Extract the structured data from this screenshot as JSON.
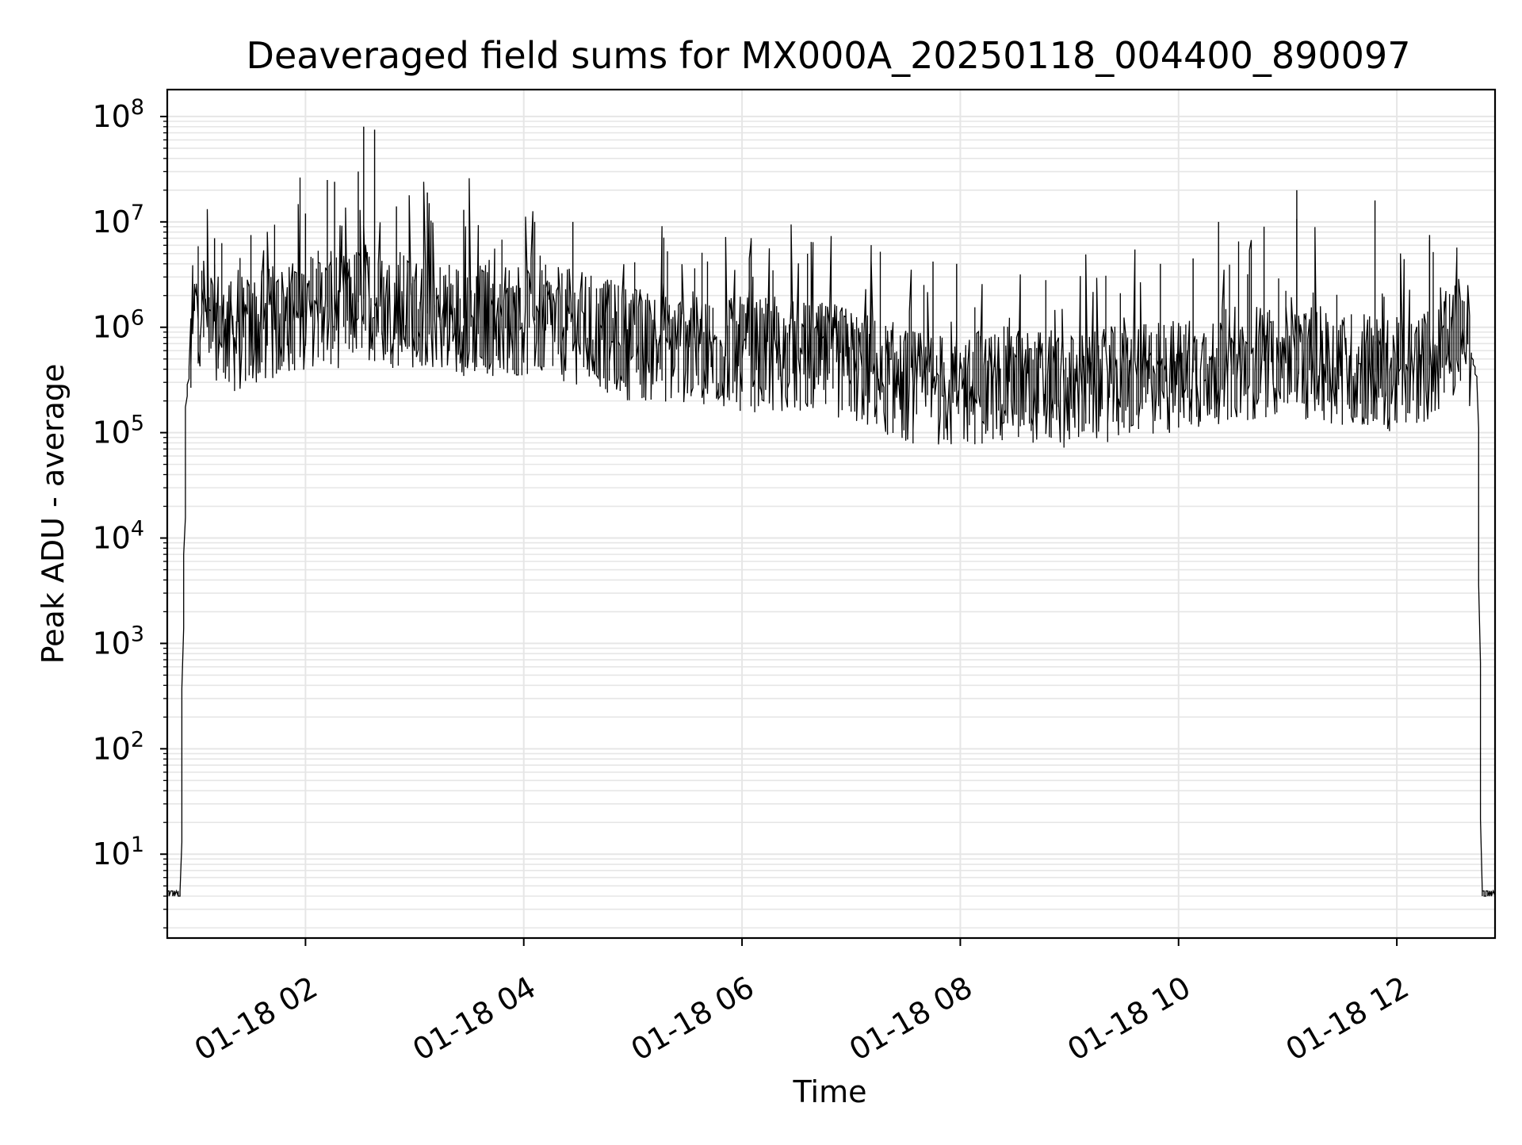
{
  "chart_data": {
    "type": "line",
    "title": "Deaveraged field sums for MX000A_20250118_004400_890097",
    "xlabel": "Time",
    "ylabel": "Peak ADU - average",
    "yscale": "log",
    "ylim": [
      1.6,
      180000000
    ],
    "xlim": [
      "2025-01-18 00:44",
      "2025-01-18 12:54"
    ],
    "x_ticks": [
      "01-18 02",
      "01-18 04",
      "01-18 06",
      "01-18 08",
      "01-18 10",
      "01-18 12"
    ],
    "y_ticks": [
      {
        "base": "10",
        "exp": "1"
      },
      {
        "base": "10",
        "exp": "2"
      },
      {
        "base": "10",
        "exp": "3"
      },
      {
        "base": "10",
        "exp": "4"
      },
      {
        "base": "10",
        "exp": "5"
      },
      {
        "base": "10",
        "exp": "6"
      },
      {
        "base": "10",
        "exp": "7"
      },
      {
        "base": "10",
        "exp": "8"
      }
    ],
    "grid": "both (major and minor)",
    "line_color": "#000000",
    "grid_color": "#e6e6e6",
    "series": [
      {
        "x": [
          "2025-01-18 00:44",
          "2025-01-18 00:52",
          "2025-01-18 00:53",
          "2025-01-18 00:55",
          "2025-01-18 01:00",
          "2025-01-18 01:02",
          "2025-01-18 01:20",
          "2025-01-18 01:50",
          "2025-01-18 02:10",
          "2025-01-18 02:20",
          "2025-01-18 02:33",
          "2025-01-18 02:40",
          "2025-01-18 03:00",
          "2025-01-18 03:30",
          "2025-01-18 04:00",
          "2025-01-18 04:30",
          "2025-01-18 05:00",
          "2025-01-18 05:30",
          "2025-01-18 06:00",
          "2025-01-18 06:30",
          "2025-01-18 07:00",
          "2025-01-18 07:30",
          "2025-01-18 08:00",
          "2025-01-18 08:30",
          "2025-01-18 09:00",
          "2025-01-18 09:30",
          "2025-01-18 10:00",
          "2025-01-18 10:30",
          "2025-01-18 11:00",
          "2025-01-18 11:30",
          "2025-01-18 12:00",
          "2025-01-18 12:20",
          "2025-01-18 12:38",
          "2025-01-18 12:45",
          "2025-01-18 12:47",
          "2025-01-18 12:54"
        ],
        "y": [
          4,
          4,
          1000,
          200000,
          1600000,
          1500000,
          800000,
          1200000,
          1600000,
          1400000,
          1900000,
          1500000,
          1400000,
          1200000,
          1200000,
          1000000,
          700000,
          650000,
          550000,
          520000,
          450000,
          280000,
          250000,
          300000,
          250000,
          300000,
          350000,
          450000,
          500000,
          420000,
          350000,
          450000,
          1000000,
          300000,
          4,
          4
        ]
      }
    ],
    "spikes": [
      {
        "x": "2025-01-18 02:32",
        "y": 80000000
      },
      {
        "x": "2025-01-18 02:38",
        "y": 75000000
      },
      {
        "x": "2025-01-18 02:12",
        "y": 25000000
      },
      {
        "x": "2025-01-18 02:16",
        "y": 24000000
      },
      {
        "x": "2025-01-18 02:29",
        "y": 30000000
      },
      {
        "x": "2025-01-18 02:50",
        "y": 14000000
      },
      {
        "x": "2025-01-18 03:07",
        "y": 19000000
      },
      {
        "x": "2025-01-18 03:27",
        "y": 13000000
      },
      {
        "x": "2025-01-18 02:00",
        "y": 12000000
      },
      {
        "x": "2025-01-18 04:06",
        "y": 10000000
      },
      {
        "x": "2025-01-18 04:27",
        "y": 10000000
      },
      {
        "x": "2025-01-18 06:05",
        "y": 7000000
      },
      {
        "x": "2025-01-18 07:45",
        "y": 4200000
      },
      {
        "x": "2025-01-18 07:58",
        "y": 4000000
      },
      {
        "x": "2025-01-18 09:50",
        "y": 4000000
      },
      {
        "x": "2025-01-18 10:08",
        "y": 4500000
      },
      {
        "x": "2025-01-18 10:22",
        "y": 10000000
      },
      {
        "x": "2025-01-18 10:47",
        "y": 9000000
      },
      {
        "x": "2025-01-18 11:05",
        "y": 20000000
      },
      {
        "x": "2025-01-18 11:48",
        "y": 16000000
      },
      {
        "x": "2025-01-18 12:18",
        "y": 7500000
      },
      {
        "x": "2025-01-18 01:30",
        "y": 7500000
      },
      {
        "x": "2025-01-18 01:10",
        "y": 7000000
      }
    ]
  }
}
